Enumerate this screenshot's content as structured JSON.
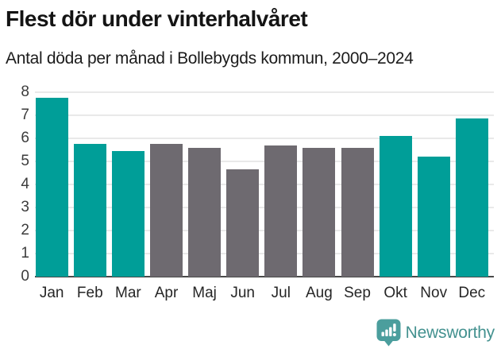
{
  "header": {
    "title": "Flest dör under vinterhalvåret",
    "subtitle": "Antal döda per månad i Bollebygds kommun, 2000–2024"
  },
  "chart_data": {
    "type": "bar",
    "title": "Flest dör under vinterhalvåret",
    "subtitle": "Antal döda per månad i Bollebygds kommun, 2000–2024",
    "categories": [
      "Jan",
      "Feb",
      "Mar",
      "Apr",
      "Maj",
      "Jun",
      "Jul",
      "Aug",
      "Sep",
      "Okt",
      "Nov",
      "Dec"
    ],
    "values": [
      7.75,
      5.75,
      5.45,
      5.75,
      5.6,
      4.65,
      5.7,
      5.6,
      5.6,
      6.1,
      5.2,
      6.85
    ],
    "highlighted": [
      true,
      true,
      true,
      false,
      false,
      false,
      false,
      false,
      false,
      true,
      true,
      true
    ],
    "xlabel": "",
    "ylabel": "",
    "ylim": [
      0,
      8
    ],
    "yticks": [
      0,
      1,
      2,
      3,
      4,
      5,
      6,
      7,
      8
    ],
    "grid": "horizontal",
    "legend": "none",
    "colors": {
      "highlight_teal": "#009e98",
      "default_gray": "#6e6a70",
      "gridline": "#e9e9e9",
      "axis_line": "#4a4a4a"
    }
  },
  "footer": {
    "brand": "Newsworthy",
    "logo_icon": "newsworthy-speech-bubble-bar-chart-icon",
    "brand_color": "#43918f",
    "icon_color": "#4b9e9d"
  }
}
